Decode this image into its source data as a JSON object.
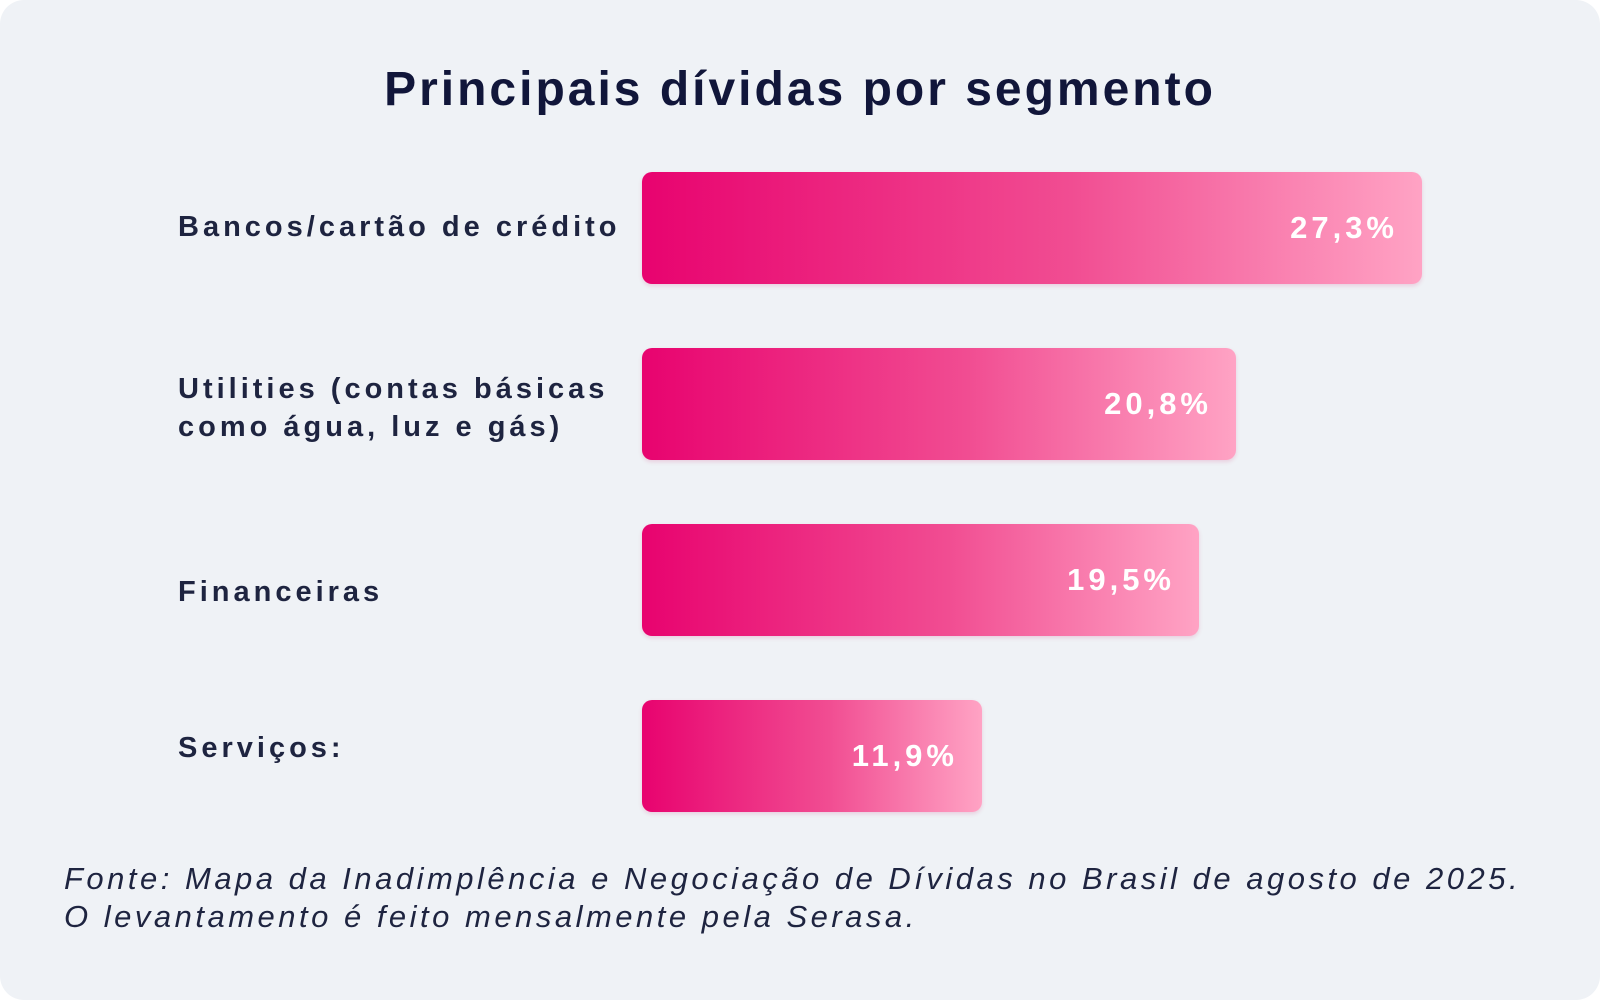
{
  "chart_data": {
    "type": "bar",
    "orientation": "horizontal",
    "title": "Principais dívidas por segmento",
    "categories": [
      "Bancos/cartão de crédito",
      "Utilities (contas básicas como água, luz e gás)",
      "Financeiras",
      "Serviços:"
    ],
    "values": [
      27.3,
      20.8,
      19.5,
      11.9
    ],
    "value_labels": [
      "27,3%",
      "20,8%",
      "19,5%",
      "11,9%"
    ],
    "unit": "%",
    "xlim": [
      0,
      27.3
    ],
    "grid": false,
    "legend": "none",
    "bar_colors": {
      "start": "#e8036f",
      "end": "#ffa3c4"
    }
  },
  "source_note": "Fonte: Mapa da Inadimplência e Negociação de Dívidas no Brasil de agosto de 2025. O levantamento é feito mensalmente pela Serasa.",
  "colors": {
    "background": "#eff2f6",
    "title": "#11163a",
    "label": "#1e2440",
    "value_text": "#ffffff"
  }
}
